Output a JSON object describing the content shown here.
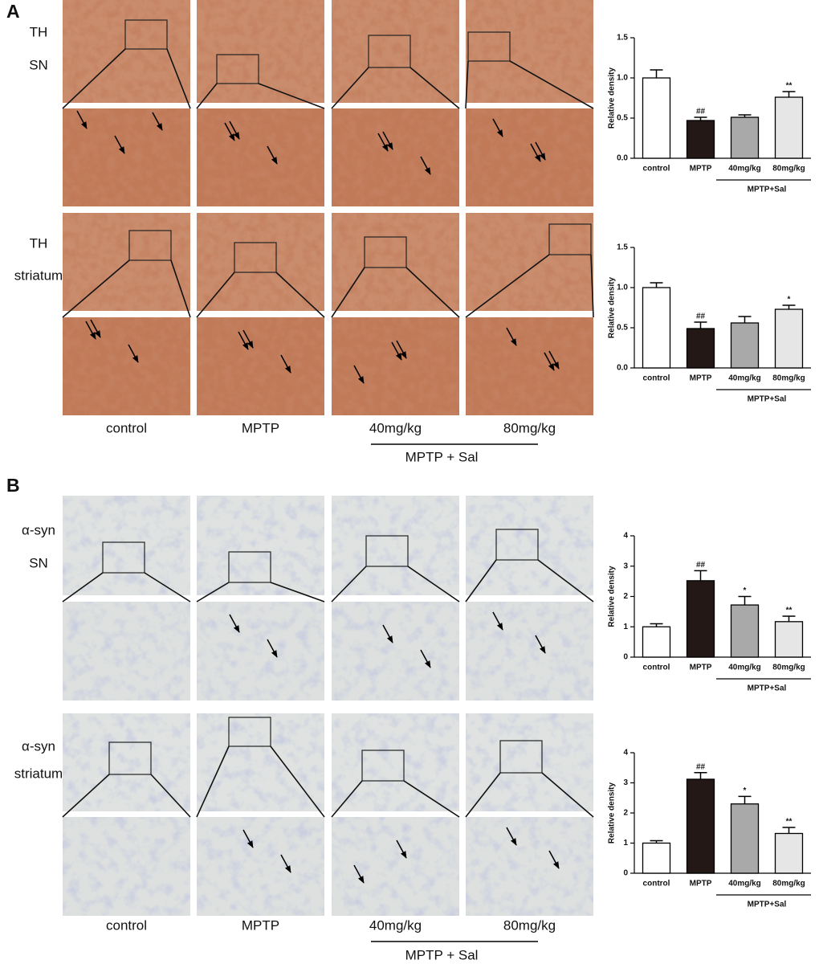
{
  "panels": [
    {
      "label": "A",
      "rows": [
        [
          "TH",
          "SN"
        ],
        [
          "TH",
          "striatum"
        ]
      ],
      "columns": [
        "control",
        "MPTP",
        "40mg/kg",
        "80mg/kg"
      ],
      "group": "MPTP + Sal"
    },
    {
      "label": "B",
      "rows": [
        [
          "α-syn",
          "SN"
        ],
        [
          "α-syn",
          "striatum"
        ]
      ],
      "columns": [
        "control",
        "MPTP",
        "40mg/kg",
        "80mg/kg"
      ],
      "group": "MPTP + Sal"
    }
  ],
  "chart_data": [
    {
      "type": "bar",
      "y_label": "Relative density",
      "categories": [
        "control",
        "MPTP",
        "40mg/kg",
        "80mg/kg"
      ],
      "group_label": "MPTP+Sal",
      "values": [
        1.0,
        0.47,
        0.51,
        0.76
      ],
      "errors": [
        0.1,
        0.04,
        0.03,
        0.07
      ],
      "annotations": [
        null,
        "##",
        null,
        "**"
      ],
      "colors": [
        "#ffffff",
        "#231815",
        "#a9a9a9",
        "#e6e6e6"
      ],
      "ylim": [
        0,
        1.5
      ],
      "yticks": [
        {
          "value": 0,
          "label": "0.0"
        },
        0.5,
        {
          "value": 1,
          "label": "1.0"
        },
        1.5
      ]
    },
    {
      "type": "bar",
      "y_label": "Relative density",
      "categories": [
        "control",
        "MPTP",
        "40mg/kg",
        "80mg/kg"
      ],
      "group_label": "MPTP+Sal",
      "values": [
        1.0,
        0.49,
        0.56,
        0.73
      ],
      "errors": [
        0.06,
        0.08,
        0.08,
        0.05
      ],
      "annotations": [
        null,
        "##",
        null,
        "*"
      ],
      "colors": [
        "#ffffff",
        "#231815",
        "#a9a9a9",
        "#e6e6e6"
      ],
      "ylim": [
        0,
        1.5
      ],
      "yticks": [
        {
          "value": 0,
          "label": "0.0"
        },
        0.5,
        {
          "value": 1,
          "label": "1.0"
        },
        1.5
      ]
    },
    {
      "type": "bar",
      "y_label": "Relative density",
      "categories": [
        "control",
        "MPTP",
        "40mg/kg",
        "80mg/kg"
      ],
      "group_label": "MPTP+Sal",
      "values": [
        1.0,
        2.52,
        1.72,
        1.17
      ],
      "errors": [
        0.1,
        0.33,
        0.28,
        0.18
      ],
      "annotations": [
        null,
        "##",
        "*",
        "**"
      ],
      "colors": [
        "#ffffff",
        "#231815",
        "#a9a9a9",
        "#e6e6e6"
      ],
      "ylim": [
        0,
        4
      ],
      "yticks": [
        0,
        1,
        2,
        3,
        4
      ]
    },
    {
      "type": "bar",
      "y_label": "Relative density",
      "categories": [
        "control",
        "MPTP",
        "40mg/kg",
        "80mg/kg"
      ],
      "group_label": "MPTP+Sal",
      "values": [
        1.0,
        3.12,
        2.3,
        1.32
      ],
      "errors": [
        0.08,
        0.22,
        0.25,
        0.2
      ],
      "annotations": [
        null,
        "##",
        "*",
        "**"
      ],
      "colors": [
        "#ffffff",
        "#231815",
        "#a9a9a9",
        "#e6e6e6"
      ],
      "ylim": [
        0,
        4
      ],
      "yticks": [
        0,
        1,
        2,
        3,
        4
      ]
    }
  ]
}
